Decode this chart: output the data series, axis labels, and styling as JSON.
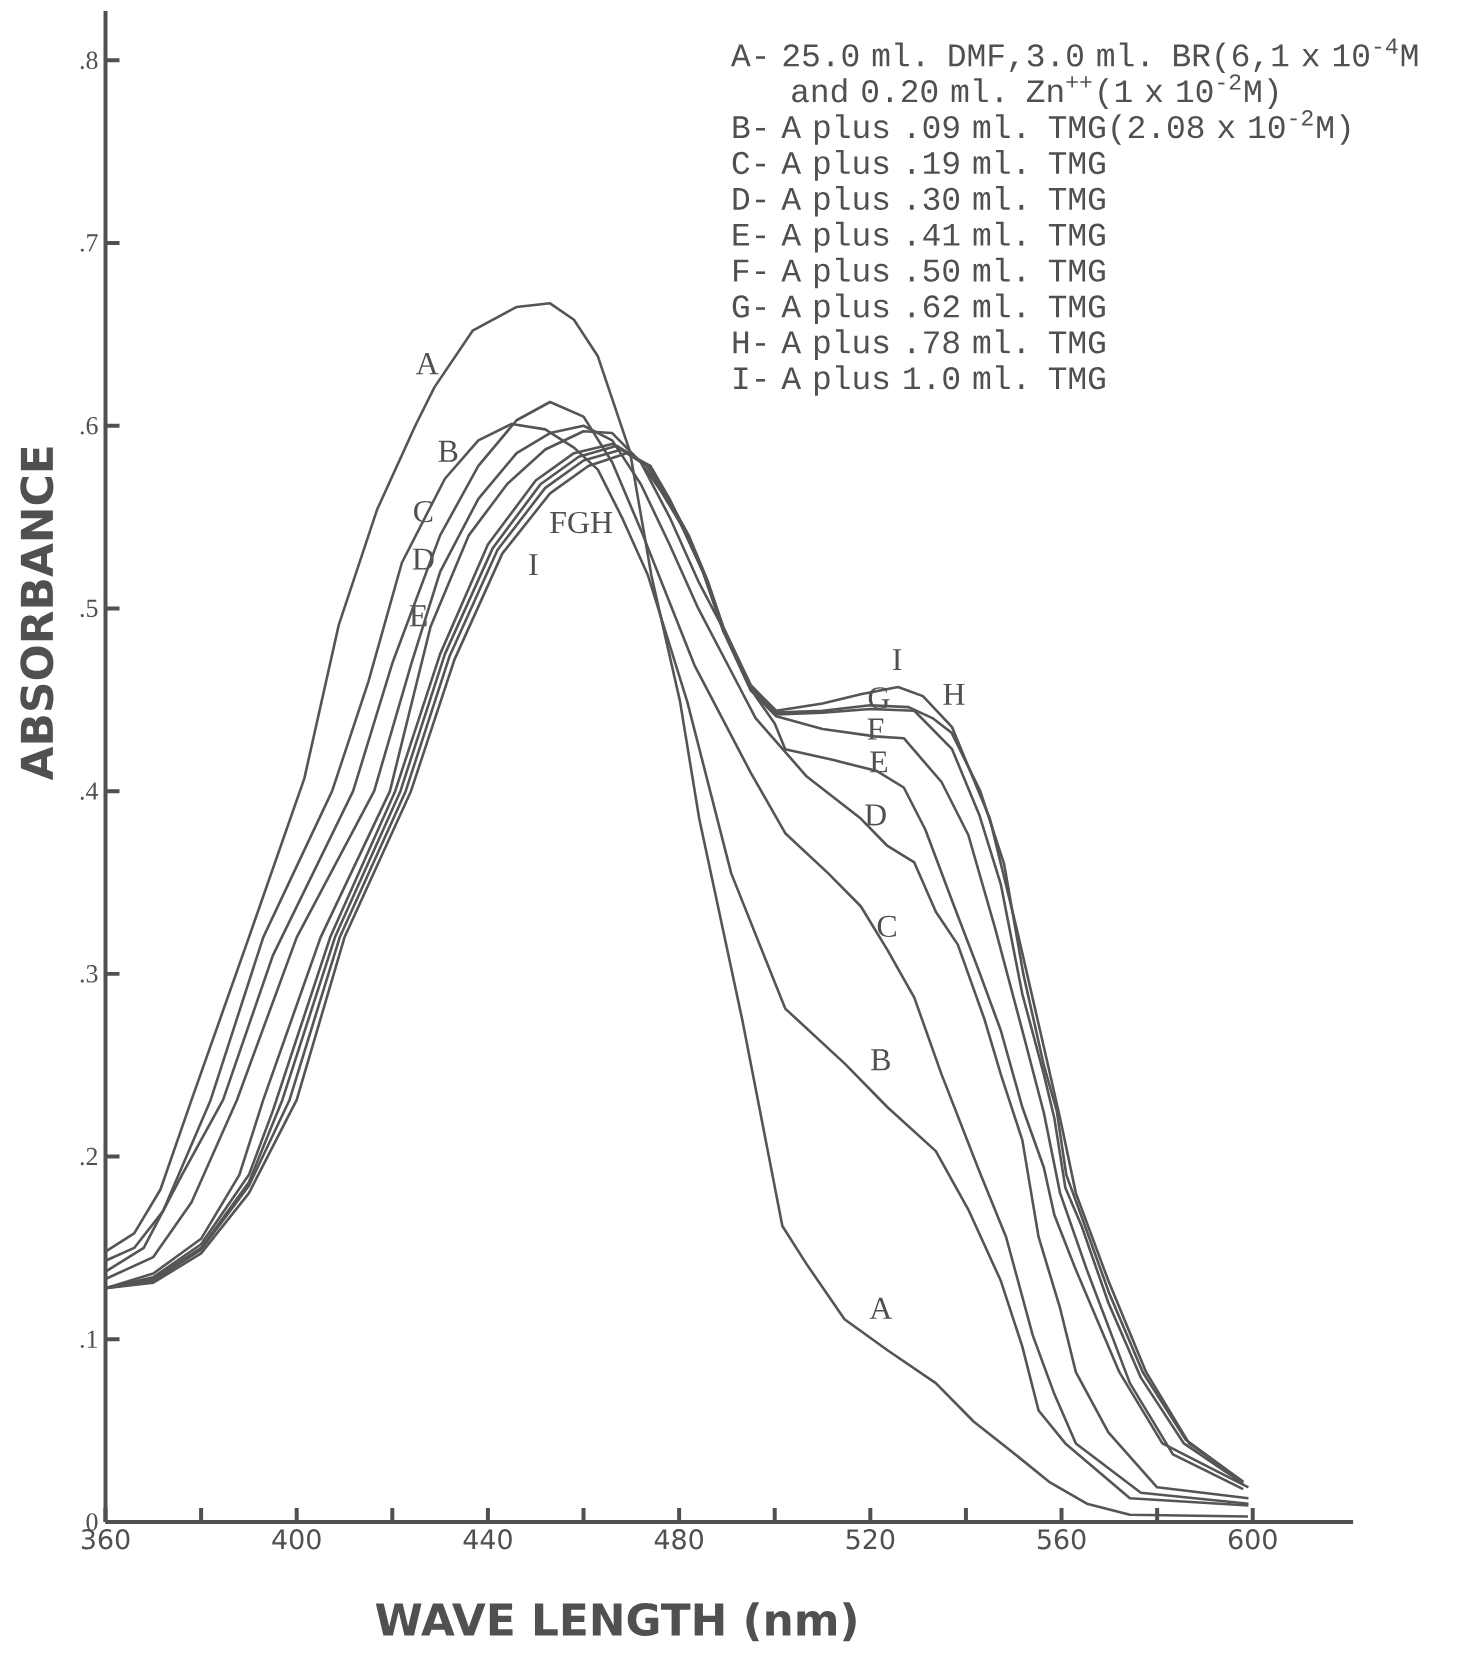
{
  "chart_data": {
    "type": "line",
    "xlabel": "WAVE LENGTH (nm)",
    "ylabel": "ABSORBANCE",
    "xlim": [
      360,
      621
    ],
    "ylim": [
      0,
      0.827
    ],
    "xticks": [
      360,
      {
        "value": 380,
        "label": null
      },
      400,
      {
        "value": 420,
        "label": null
      },
      440,
      {
        "value": 460,
        "label": null
      },
      480,
      {
        "value": 500,
        "label": null
      },
      520,
      {
        "value": 540,
        "label": null
      },
      560,
      {
        "value": 580,
        "label": null
      },
      600
    ],
    "yticks": [
      0,
      {
        "value": 0.1,
        "label": ".1"
      },
      {
        "value": 0.2,
        "label": ".2"
      },
      {
        "value": 0.3,
        "label": ".3"
      },
      {
        "value": 0.4,
        "label": ".4"
      },
      {
        "value": 0.5,
        "label": ".5"
      },
      {
        "value": 0.6,
        "label": ".6"
      },
      {
        "value": 0.7,
        "label": ".7"
      },
      {
        "value": 0.8,
        "label": ".8"
      }
    ],
    "series": [
      {
        "color": "#555555",
        "x": [
          360,
          366,
          371.5,
          378,
          390,
          401.6,
          408.8,
          416.8,
          424.8,
          428.8,
          436.8,
          446,
          453,
          458,
          463,
          469.7,
          474.2,
          480.2,
          484.2,
          493.2,
          501.6,
          506.7,
          514.6,
          523.6,
          533.7,
          541.6,
          548.9,
          557.4,
          565.3,
          574.3,
          599
        ],
        "values": [
          0.148,
          0.158,
          0.182,
          0.231,
          0.32,
          0.407,
          0.491,
          0.554,
          0.6,
          0.621,
          0.652,
          0.665,
          0.667,
          0.658,
          0.638,
          0.586,
          0.518,
          0.449,
          0.385,
          0.275,
          0.162,
          0.141,
          0.111,
          0.094,
          0.076,
          0.055,
          0.04,
          0.022,
          0.01,
          0.004,
          0.003
        ]
      },
      {
        "color": "#555555",
        "x": [
          360,
          366,
          372,
          382,
          393,
          407.4,
          415,
          422,
          431,
          438,
          445,
          452,
          458,
          463,
          468,
          473.5,
          481.7,
          490.9,
          502.2,
          514.6,
          523.6,
          533.7,
          540.5,
          547.3,
          551.8,
          555.2,
          560.8,
          574.3,
          599.1
        ],
        "values": [
          0.143,
          0.15,
          0.17,
          0.231,
          0.32,
          0.4,
          0.46,
          0.525,
          0.571,
          0.592,
          0.601,
          0.598,
          0.588,
          0.576,
          0.55,
          0.518,
          0.449,
          0.355,
          0.281,
          0.251,
          0.227,
          0.203,
          0.171,
          0.132,
          0.096,
          0.061,
          0.043,
          0.013,
          0.009
        ]
      },
      {
        "color": "#555555",
        "x": [
          360,
          368,
          376,
          384.6,
          395,
          411.8,
          420,
          430,
          438,
          446,
          453,
          460,
          466,
          472,
          477,
          483.2,
          489,
          495,
          502.2,
          511.2,
          518,
          523.6,
          529.2,
          534.9,
          542.8,
          548.4,
          554,
          558.5,
          563,
          576.6,
          599.1
        ],
        "values": [
          0.137,
          0.15,
          0.19,
          0.231,
          0.31,
          0.4,
          0.47,
          0.54,
          0.578,
          0.603,
          0.613,
          0.605,
          0.58,
          0.543,
          0.51,
          0.469,
          0.44,
          0.41,
          0.377,
          0.355,
          0.337,
          0.313,
          0.287,
          0.245,
          0.192,
          0.156,
          0.102,
          0.07,
          0.043,
          0.016,
          0.01
        ]
      },
      {
        "color": "#555555",
        "x": [
          360,
          370,
          378,
          387.5,
          400,
          416.2,
          424,
          430,
          438,
          446,
          453,
          460,
          466,
          472,
          478,
          484,
          490,
          496,
          502,
          506.7,
          518,
          523.6,
          529.2,
          533.7,
          538.3,
          543.9,
          547.3,
          551.8,
          555.2,
          559.7,
          563,
          569.8,
          580,
          599.1
        ],
        "values": [
          0.133,
          0.145,
          0.175,
          0.231,
          0.32,
          0.4,
          0.47,
          0.52,
          0.56,
          0.585,
          0.596,
          0.6,
          0.592,
          0.568,
          0.535,
          0.5,
          0.47,
          0.44,
          0.422,
          0.408,
          0.385,
          0.37,
          0.361,
          0.334,
          0.316,
          0.275,
          0.245,
          0.209,
          0.156,
          0.117,
          0.082,
          0.049,
          0.019,
          0.013
        ]
      },
      {
        "color": "#555555",
        "x": [
          360,
          370,
          380,
          388,
          393,
          405,
          419.5,
          428,
          436,
          444,
          452,
          460,
          466,
          472,
          478,
          484,
          490,
          496,
          500,
          502.2,
          512.3,
          521.4,
          527,
          531.5,
          537.1,
          542.8,
          547.3,
          551.8,
          556.3,
          558.5,
          563,
          572.1,
          581.1,
          599.1
        ],
        "values": [
          0.128,
          0.136,
          0.155,
          0.19,
          0.231,
          0.32,
          0.4,
          0.49,
          0.54,
          0.568,
          0.587,
          0.597,
          0.596,
          0.58,
          0.55,
          0.515,
          0.485,
          0.452,
          0.437,
          0.423,
          0.417,
          0.411,
          0.402,
          0.379,
          0.34,
          0.301,
          0.269,
          0.227,
          0.194,
          0.168,
          0.138,
          0.082,
          0.043,
          0.019
        ]
      },
      {
        "color": "#555555",
        "x": [
          360,
          370,
          380,
          390,
          395,
          407,
          420.6,
          430,
          440,
          450,
          458,
          466,
          472,
          476,
          480.2,
          485,
          489.2,
          495,
          500.3,
          510,
          521,
          527,
          534.9,
          540.5,
          546.1,
          551.8,
          556.3,
          559.7,
          565.3,
          574.3,
          583.3,
          598
        ],
        "values": [
          0.128,
          0.134,
          0.152,
          0.19,
          0.225,
          0.32,
          0.4,
          0.475,
          0.535,
          0.57,
          0.585,
          0.59,
          0.58,
          0.565,
          0.547,
          0.52,
          0.488,
          0.455,
          0.441,
          0.434,
          0.43,
          0.429,
          0.405,
          0.376,
          0.325,
          0.269,
          0.224,
          0.18,
          0.138,
          0.076,
          0.037,
          0.018
        ]
      },
      {
        "color": "#555555",
        "x": [
          360,
          370,
          380,
          390,
          397,
          408,
          421.7,
          431,
          441,
          451,
          459,
          467,
          473,
          477,
          481,
          485,
          489.2,
          495,
          500.3,
          510,
          520,
          529.2,
          537.1,
          542.8,
          547.3,
          551.8,
          556.3,
          558.5,
          560.8,
          564.2,
          569.8,
          576.6,
          585.6,
          598
        ],
        "values": [
          0.128,
          0.133,
          0.15,
          0.186,
          0.231,
          0.32,
          0.4,
          0.475,
          0.533,
          0.568,
          0.583,
          0.589,
          0.579,
          0.562,
          0.543,
          0.52,
          0.488,
          0.456,
          0.442,
          0.443,
          0.445,
          0.444,
          0.423,
          0.387,
          0.349,
          0.289,
          0.245,
          0.221,
          0.183,
          0.162,
          0.12,
          0.079,
          0.043,
          0.021
        ]
      },
      {
        "color": "#555555",
        "x": [
          360,
          370,
          380,
          390,
          398.5,
          409,
          422.8,
          432,
          442,
          452,
          460,
          468,
          474,
          478,
          482,
          486,
          489.2,
          495,
          500.3,
          510,
          520,
          528,
          533,
          537,
          543,
          548,
          552,
          556.3,
          559,
          561,
          564.5,
          570,
          577,
          586,
          598
        ],
        "values": [
          0.128,
          0.132,
          0.149,
          0.184,
          0.231,
          0.32,
          0.4,
          0.474,
          0.532,
          0.566,
          0.581,
          0.587,
          0.577,
          0.559,
          0.54,
          0.515,
          0.49,
          0.457,
          0.443,
          0.444,
          0.447,
          0.446,
          0.44,
          0.432,
          0.4,
          0.36,
          0.3,
          0.25,
          0.225,
          0.19,
          0.165,
          0.125,
          0.082,
          0.045,
          0.022
        ]
      },
      {
        "color": "#555555",
        "x": [
          360,
          370,
          380,
          390,
          400,
          410,
          423.9,
          433,
          443,
          453,
          461,
          469,
          474,
          478,
          482,
          486,
          489.2,
          495,
          500.3,
          510,
          518,
          525.8,
          531,
          537.1,
          545,
          550.6,
          556.3,
          559.7,
          563,
          569.8,
          577.7,
          586.7,
          598
        ],
        "values": [
          0.128,
          0.131,
          0.147,
          0.18,
          0.231,
          0.32,
          0.4,
          0.472,
          0.53,
          0.563,
          0.578,
          0.585,
          0.578,
          0.56,
          0.538,
          0.514,
          0.49,
          0.458,
          0.444,
          0.448,
          0.453,
          0.457,
          0.452,
          0.435,
          0.385,
          0.325,
          0.26,
          0.221,
          0.18,
          0.132,
          0.082,
          0.043,
          0.022
        ]
      }
    ],
    "annotations": [
      "A- 25.0 ml. DMF,3.0 ml. BR(6,1 x 10$^{-4}$M and 0.20 ml. Zn$^{++}$(1 x 10$^{-2}$M)",
      "B- A plus .09 ml. TMG(2.08 x 10$^{-2}$M)",
      "C- A plus .19 ml. TMG",
      "D- A plus .30 ml. TMG",
      "E- A plus .41 ml. TMG",
      "F- A plus .50 ml. TMG",
      "G- A plus .62 ml. TMG",
      "H- A plus .78 ml. TMG",
      "I- A plus 1.0 ml. TMG",
      "A",
      "B",
      "C",
      "D",
      "E",
      "FGH",
      "I",
      "I",
      "G",
      "H",
      "F",
      "E",
      "D",
      "C",
      "B",
      "A"
    ]
  }
}
